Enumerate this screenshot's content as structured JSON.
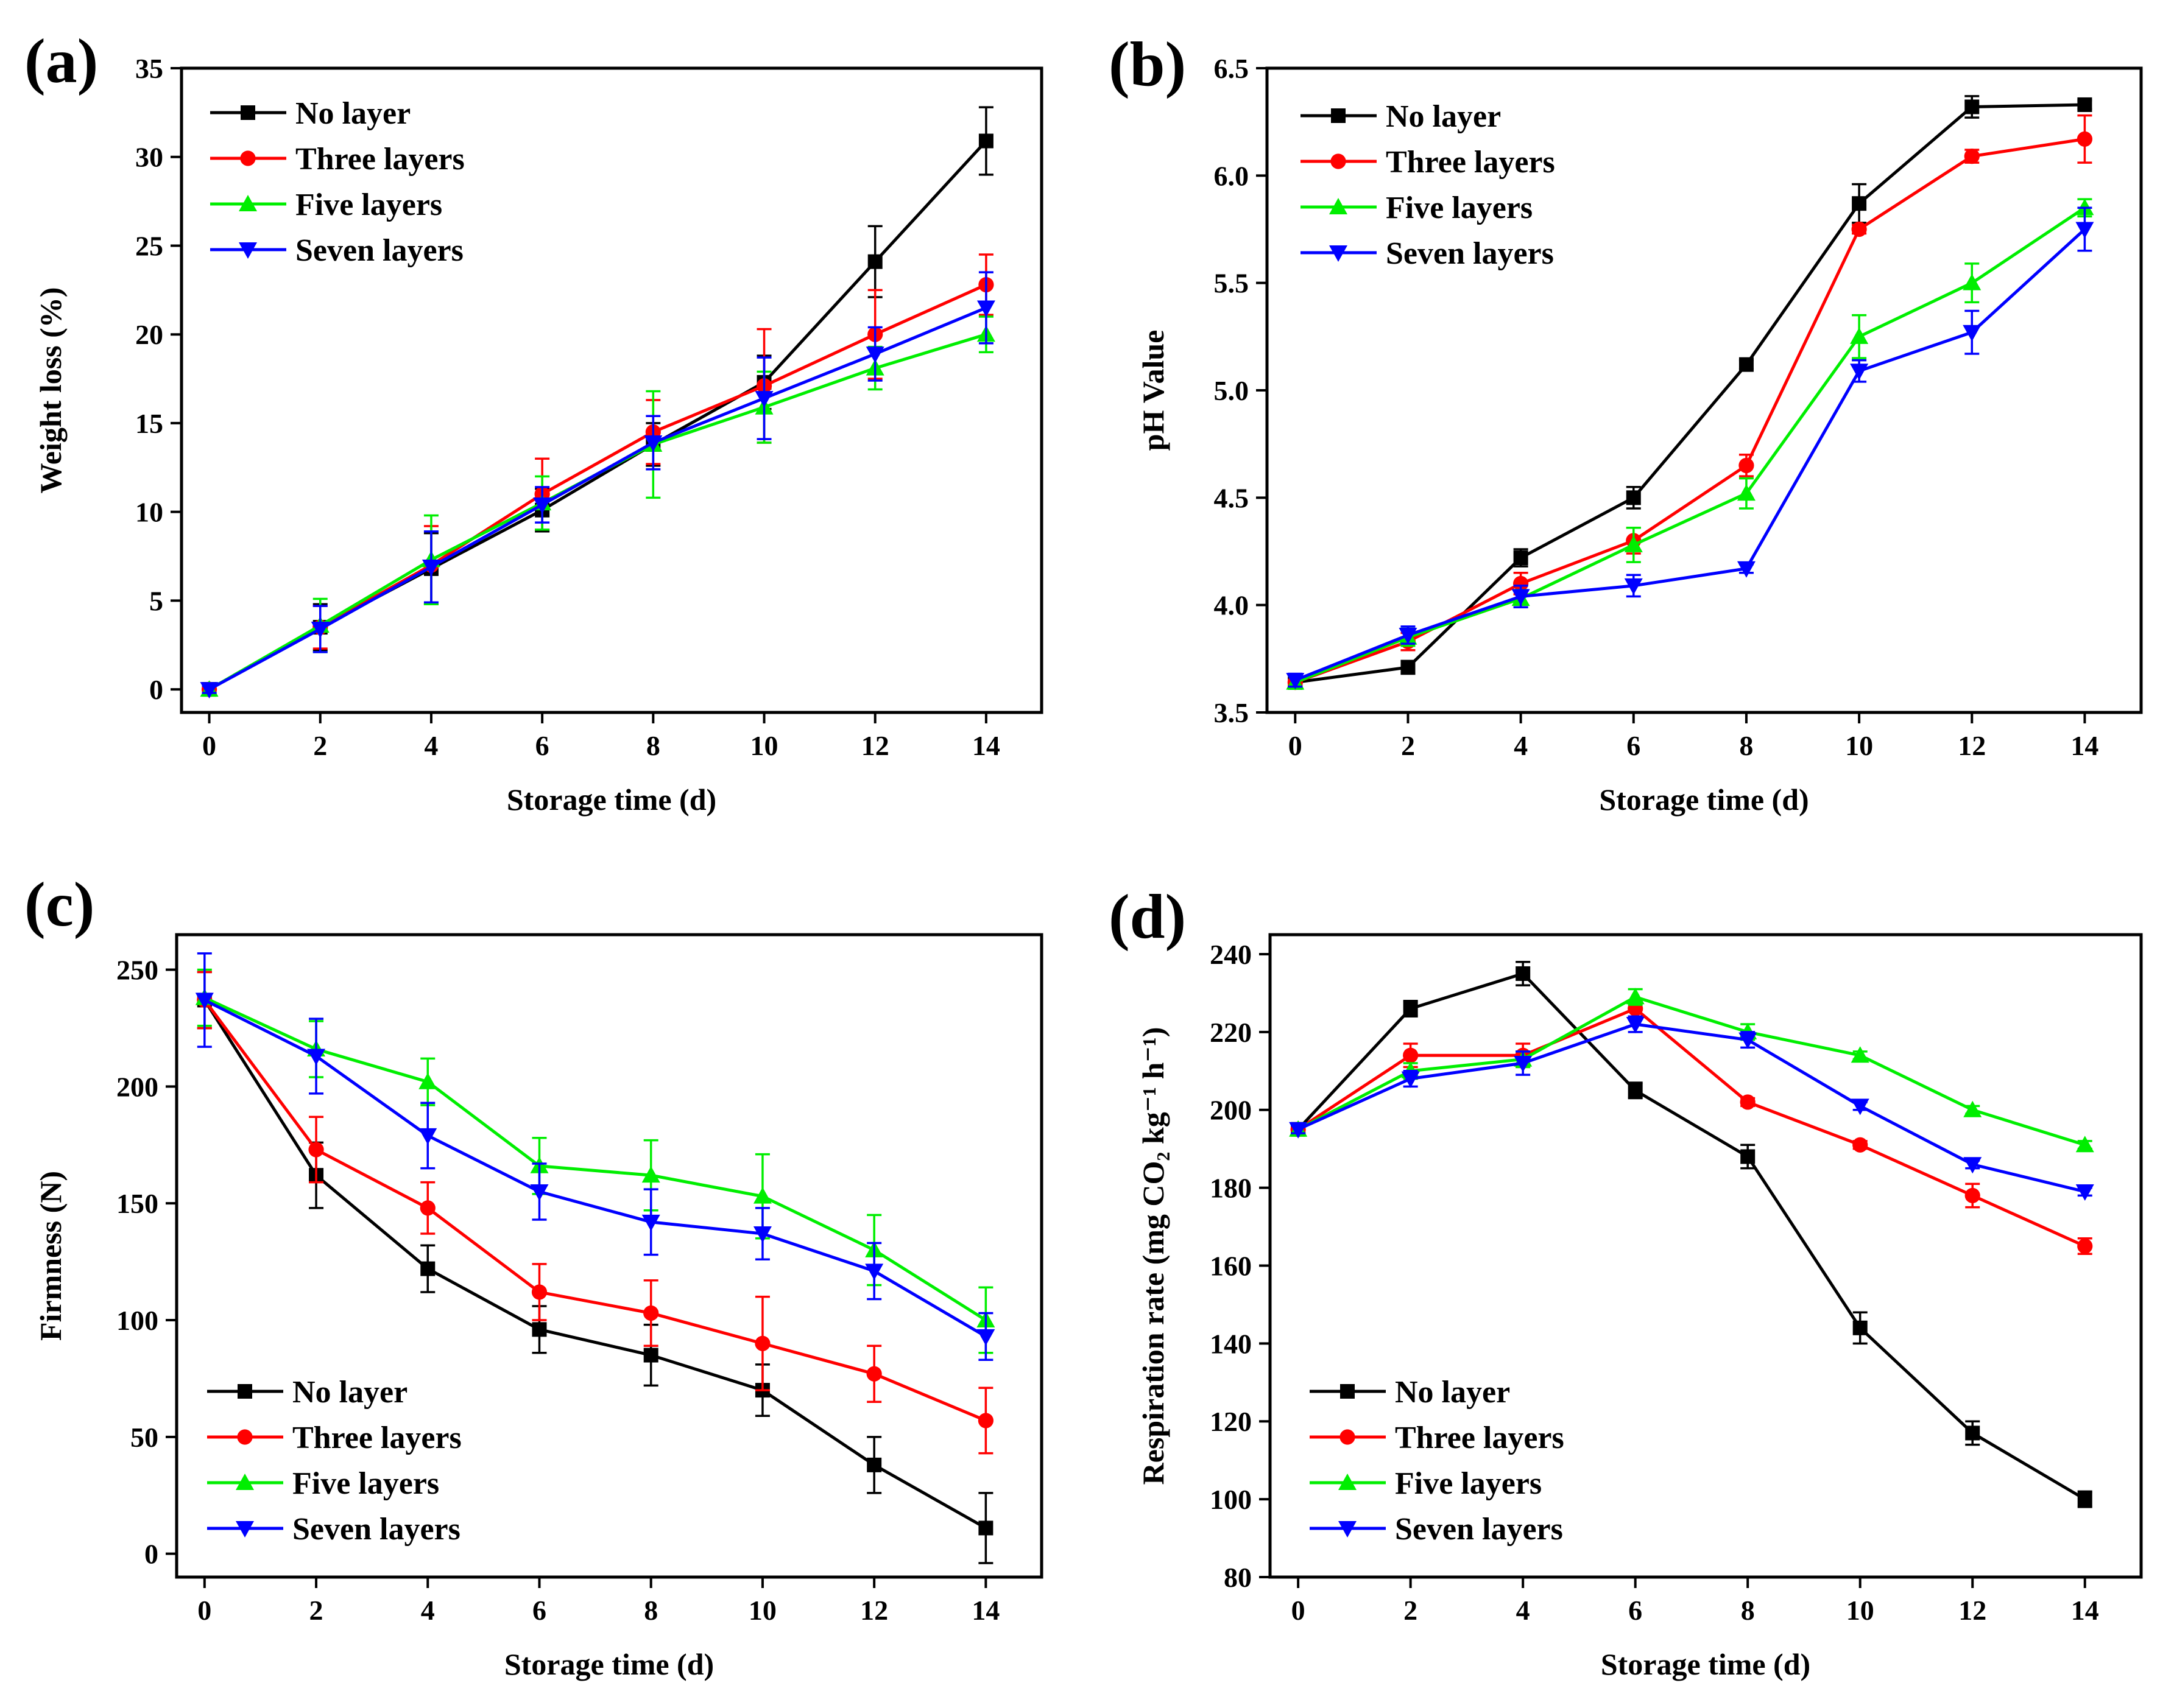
{
  "legend": {
    "no_layer": "No layer",
    "three_layers": "Three layers",
    "five_layers": "Five layers",
    "seven_layers": "Seven layers"
  },
  "colors": {
    "no_layer": "#000000",
    "three_layers": "#ff0000",
    "five_layers": "#00ee00",
    "seven_layers": "#0000ff"
  },
  "chart_data": [
    {
      "panel_label": "(a)",
      "type": "line",
      "xlabel": "Storage time (d)",
      "ylabel": "Weight loss (%)",
      "x": [
        0,
        2,
        4,
        6,
        8,
        10,
        12,
        14
      ],
      "xlim": [
        -0.5,
        15
      ],
      "ylim": [
        -1.3,
        35
      ],
      "xticks": [
        0,
        2,
        4,
        6,
        8,
        10,
        12,
        14
      ],
      "yticks": [
        0,
        5,
        10,
        15,
        20,
        25,
        30,
        35
      ],
      "tick_labels_y": [
        "0",
        "5",
        "10",
        "15",
        "20",
        "25",
        "30",
        "35"
      ],
      "legend_position": "top-left",
      "series": [
        {
          "key": "no_layer",
          "marker": "square",
          "values": [
            0,
            3.5,
            6.8,
            10.1,
            13.8,
            17.3,
            24.1,
            30.9
          ],
          "errors": [
            0.2,
            1.3,
            2.0,
            1.2,
            1.2,
            1.5,
            2.0,
            1.9
          ]
        },
        {
          "key": "three_layers",
          "marker": "circle",
          "values": [
            0,
            3.5,
            7.0,
            11.0,
            14.5,
            17.1,
            20.0,
            22.8
          ],
          "errors": [
            0.2,
            1.2,
            2.2,
            2.0,
            1.8,
            3.2,
            2.5,
            1.7
          ]
        },
        {
          "key": "five_layers",
          "marker": "triangle-up",
          "values": [
            0,
            3.6,
            7.3,
            10.5,
            13.8,
            15.9,
            18.1,
            20.0
          ],
          "errors": [
            0.2,
            1.5,
            2.5,
            1.5,
            3.0,
            2.0,
            1.2,
            1.0
          ]
        },
        {
          "key": "seven_layers",
          "marker": "triangle-down",
          "values": [
            0,
            3.4,
            6.9,
            10.4,
            13.9,
            16.4,
            18.9,
            21.5
          ],
          "errors": [
            0.2,
            1.3,
            2.0,
            1.0,
            1.5,
            2.3,
            1.5,
            2.0
          ]
        }
      ]
    },
    {
      "panel_label": "(b)",
      "type": "line",
      "xlabel": "Storage time (d)",
      "ylabel": "pH Value",
      "x": [
        0,
        2,
        4,
        6,
        8,
        10,
        12,
        14
      ],
      "xlim": [
        -0.5,
        15
      ],
      "ylim": [
        3.5,
        6.5
      ],
      "xticks": [
        0,
        2,
        4,
        6,
        8,
        10,
        12,
        14
      ],
      "yticks": [
        3.5,
        4.0,
        4.5,
        5.0,
        5.5,
        6.0,
        6.5
      ],
      "tick_labels_y": [
        "3.5",
        "4.0",
        "4.5",
        "5.0",
        "5.5",
        "6.0",
        "6.5"
      ],
      "legend_position": "top-left",
      "series": [
        {
          "key": "no_layer",
          "marker": "square",
          "values": [
            3.64,
            3.71,
            4.22,
            4.5,
            5.12,
            5.87,
            6.32,
            6.33
          ],
          "errors": [
            0.02,
            0.03,
            0.04,
            0.05,
            0.02,
            0.09,
            0.05,
            0.02
          ]
        },
        {
          "key": "three_layers",
          "marker": "circle",
          "values": [
            3.64,
            3.83,
            4.1,
            4.3,
            4.65,
            5.75,
            6.09,
            6.17
          ],
          "errors": [
            0.03,
            0.04,
            0.05,
            0.06,
            0.05,
            0.02,
            0.03,
            0.11
          ]
        },
        {
          "key": "five_layers",
          "marker": "triangle-up",
          "values": [
            3.64,
            3.85,
            4.03,
            4.28,
            4.52,
            5.25,
            5.5,
            5.85
          ],
          "errors": [
            0.03,
            0.04,
            0.04,
            0.08,
            0.07,
            0.1,
            0.09,
            0.04
          ]
        },
        {
          "key": "seven_layers",
          "marker": "triangle-down",
          "values": [
            3.65,
            3.86,
            4.04,
            4.09,
            4.17,
            5.09,
            5.27,
            5.75
          ],
          "errors": [
            0.03,
            0.04,
            0.05,
            0.05,
            0.02,
            0.05,
            0.1,
            0.1
          ]
        }
      ]
    },
    {
      "panel_label": "(c)",
      "type": "line",
      "xlabel": "Storage time (d)",
      "ylabel": "Firmness (N)",
      "x": [
        0,
        2,
        4,
        6,
        8,
        10,
        12,
        14
      ],
      "xlim": [
        -0.5,
        15
      ],
      "ylim": [
        -10,
        265
      ],
      "xticks": [
        0,
        2,
        4,
        6,
        8,
        10,
        12,
        14
      ],
      "yticks": [
        0,
        50,
        100,
        150,
        200,
        250
      ],
      "tick_labels_y": [
        "0",
        "50",
        "100",
        "150",
        "200",
        "250"
      ],
      "legend_position": "bottom-left",
      "series": [
        {
          "key": "no_layer",
          "marker": "square",
          "values": [
            237,
            162,
            122,
            96,
            85,
            70,
            38,
            11
          ],
          "errors": [
            12,
            14,
            10,
            10,
            13,
            11,
            12,
            15
          ]
        },
        {
          "key": "three_layers",
          "marker": "circle",
          "values": [
            237,
            173,
            148,
            112,
            103,
            90,
            77,
            57
          ],
          "errors": [
            12,
            14,
            11,
            12,
            14,
            20,
            12,
            14
          ]
        },
        {
          "key": "five_layers",
          "marker": "triangle-up",
          "values": [
            238,
            216,
            202,
            166,
            162,
            153,
            130,
            100
          ],
          "errors": [
            12,
            12,
            10,
            12,
            15,
            18,
            15,
            14
          ]
        },
        {
          "key": "seven_layers",
          "marker": "triangle-down",
          "values": [
            237,
            213,
            179,
            155,
            142,
            137,
            121,
            93
          ],
          "errors": [
            20,
            16,
            14,
            12,
            14,
            11,
            12,
            10
          ]
        }
      ]
    },
    {
      "panel_label": "(d)",
      "type": "line",
      "xlabel": "Storage time (d)",
      "ylabel": "Respiration rate (mg CO₂ kg⁻¹ h⁻¹)",
      "x": [
        0,
        2,
        4,
        6,
        8,
        10,
        12,
        14
      ],
      "xlim": [
        -0.5,
        15
      ],
      "ylim": [
        80,
        245
      ],
      "xticks": [
        0,
        2,
        4,
        6,
        8,
        10,
        12,
        14
      ],
      "yticks": [
        80,
        100,
        120,
        140,
        160,
        180,
        200,
        220,
        240
      ],
      "tick_labels_y": [
        "80",
        "100",
        "120",
        "140",
        "160",
        "180",
        "200",
        "220",
        "240"
      ],
      "legend_position": "bottom-left",
      "series": [
        {
          "key": "no_layer",
          "marker": "square",
          "values": [
            195,
            226,
            235,
            205,
            188,
            144,
            117,
            100
          ],
          "errors": [
            1,
            2,
            3,
            2,
            3,
            4,
            3,
            2
          ]
        },
        {
          "key": "three_layers",
          "marker": "circle",
          "values": [
            195,
            214,
            214,
            226,
            202,
            191,
            178,
            165
          ],
          "errors": [
            1,
            3,
            3,
            2,
            1,
            1,
            3,
            2
          ]
        },
        {
          "key": "five_layers",
          "marker": "triangle-up",
          "values": [
            195,
            210,
            213,
            229,
            220,
            214,
            200,
            191
          ],
          "errors": [
            1,
            2,
            2,
            2,
            2,
            1,
            1,
            1
          ]
        },
        {
          "key": "seven_layers",
          "marker": "triangle-down",
          "values": [
            195,
            208,
            212,
            222,
            218,
            201,
            186,
            179
          ],
          "errors": [
            1,
            2,
            3,
            2,
            2,
            1,
            1,
            1
          ]
        }
      ]
    }
  ]
}
